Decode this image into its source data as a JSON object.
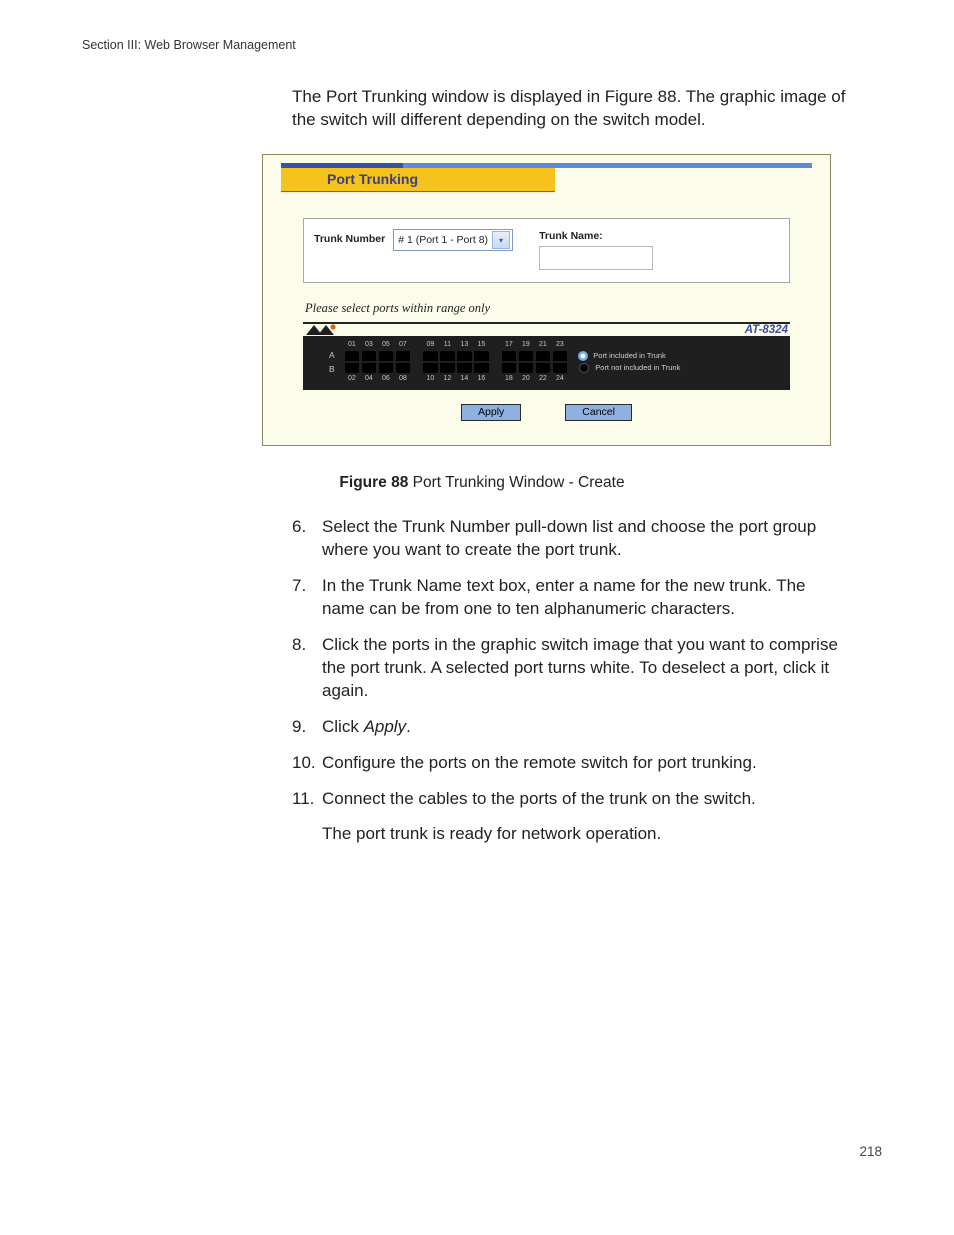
{
  "header": {
    "section": "Section III:  Web Browser Management"
  },
  "lead": "The Port Trunking window is displayed in Figure 88. The graphic image of the switch will different depending on the switch model.",
  "figure": {
    "thin_bar_color": "#5e8bd7",
    "thin_bar_seg_color": "#3753a4",
    "thin_bar_seg_width_pct": 23,
    "title": "Port Trunking",
    "title_bg": "#f6c21c",
    "title_color": "#3b3f86",
    "trunk_number_label": "Trunk Number",
    "trunk_number_value": "# 1 (Port 1 - Port 8)",
    "trunk_name_label": "Trunk Name:",
    "trunk_name_value": "",
    "hint": "Please select ports within range only",
    "model": "AT-8324",
    "row_a": "A",
    "row_b": "B",
    "top_numbers": [
      "01",
      "03",
      "05",
      "07",
      "",
      "09",
      "11",
      "13",
      "15",
      "",
      "17",
      "19",
      "21",
      "23"
    ],
    "bottom_numbers": [
      "02",
      "04",
      "06",
      "08",
      "",
      "10",
      "12",
      "14",
      "16",
      "",
      "18",
      "20",
      "22",
      "24"
    ],
    "legend": {
      "included": {
        "text": "Port included in Trunk",
        "outer": "#6ea6e4",
        "inner": "#ffffff"
      },
      "not_included": {
        "text": "Port not included in Trunk",
        "outer": "#000000",
        "inner": "#000000"
      }
    },
    "buttons": {
      "apply": "Apply",
      "cancel": "Cancel",
      "bg": "#8fb1df"
    }
  },
  "caption": {
    "bold": "Figure 88",
    "text": "  Port Trunking Window - Create"
  },
  "steps": [
    {
      "n": "6.",
      "text": "Select the Trunk Number pull-down list and choose the port group where you want to create the port trunk."
    },
    {
      "n": "7.",
      "text": "In the Trunk Name text box, enter a name for the new trunk. The name can be from one to ten alphanumeric characters."
    },
    {
      "n": "8.",
      "text": "Click the ports in the graphic switch image that you want to comprise the port trunk. A selected port turns white. To deselect a port, click it again."
    },
    {
      "n": "9.",
      "pre": "Click ",
      "em": "Apply",
      "post": "."
    },
    {
      "n": "10.",
      "text": "Configure the ports on the remote switch for port trunking."
    },
    {
      "n": "11.",
      "text": "Connect the cables to the ports of the trunk on the switch."
    }
  ],
  "trail": "The port trunk is ready for network operation.",
  "page_number": "218"
}
